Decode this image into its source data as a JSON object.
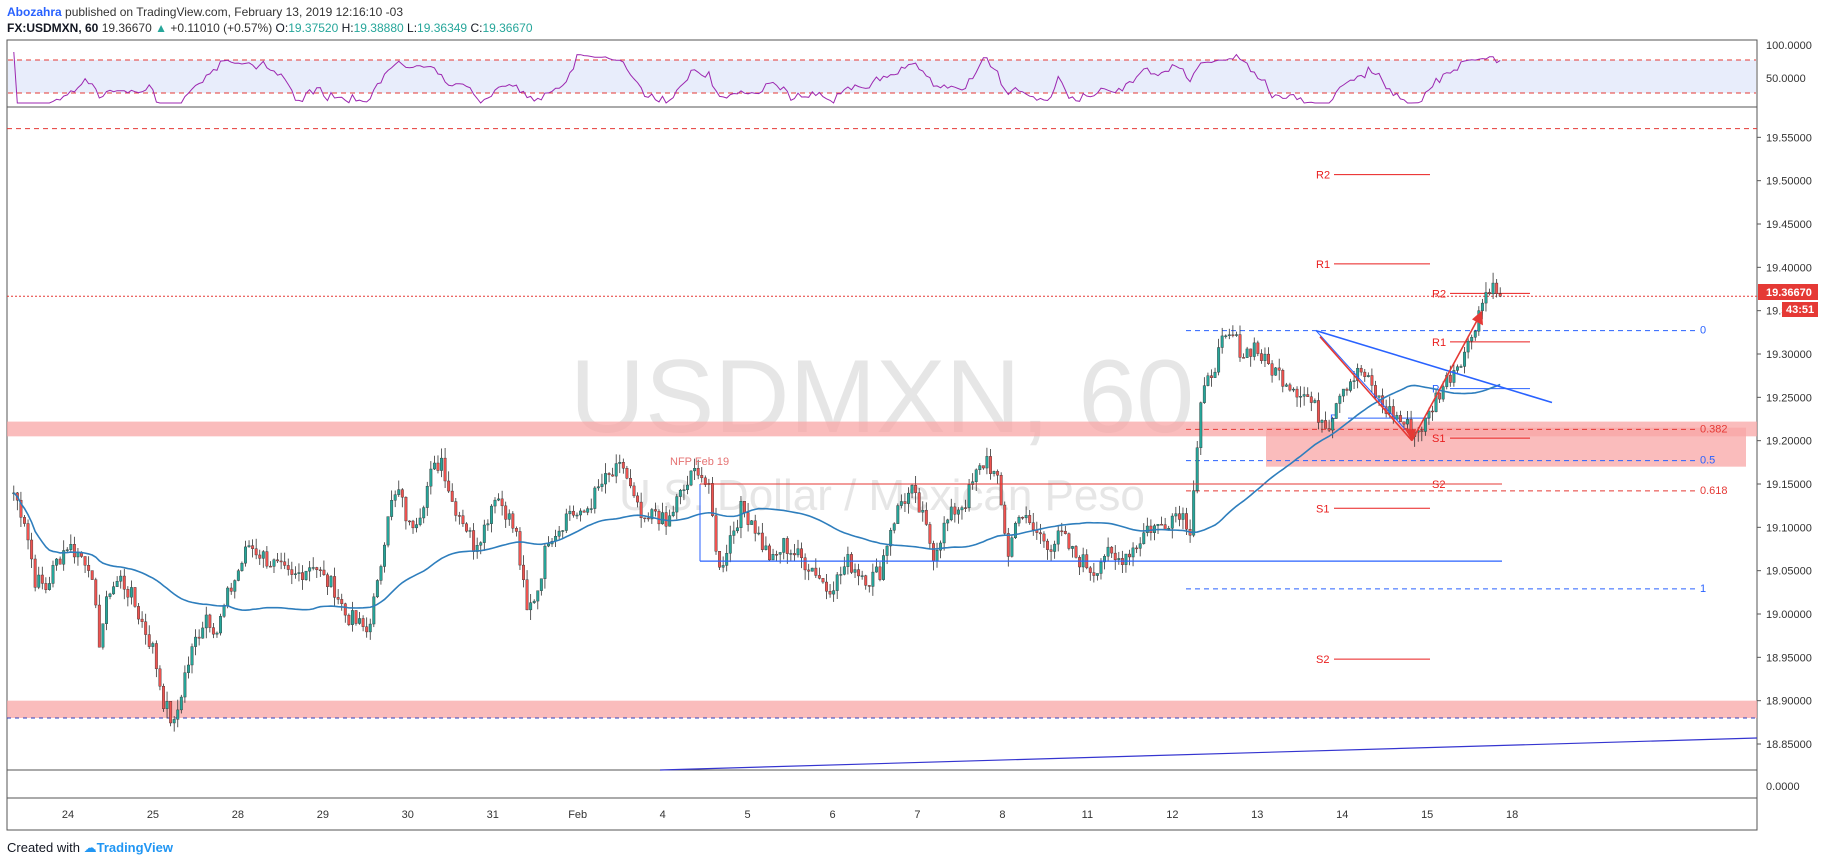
{
  "header": {
    "author": "Abozahra",
    "published": " published on TradingView.com, February 13, 2019 12:16:10 -03",
    "symbol": "FX:USDMXN, 60",
    "last": "19.36670",
    "arrow": "▲",
    "change": "+0.11010 (+0.57%)",
    "o_label": "O:",
    "o": "19.37520",
    "h_label": "H:",
    "h": "19.38880",
    "l_label": "L:",
    "l": "19.36349",
    "c_label": "C:",
    "c": "19.36670"
  },
  "watermark": {
    "symbol": "USDMXN, 60",
    "name": "U.S. Dollar / Mexican Peso"
  },
  "footer": {
    "created": "Created with",
    "brand": "TradingView"
  },
  "colors": {
    "up": "#26a69a",
    "down": "#ef5350",
    "ma": "#2e7ebd",
    "rsi": "#9c27b0",
    "fib": "#2962ff",
    "pivot": "#e91e1e",
    "zone": "#f8a5a5"
  },
  "rsi_panel": {
    "levels": [
      "100.0000",
      "50.0000"
    ]
  },
  "volume_panel": {
    "level": "0.0000"
  },
  "price_badge": {
    "price": "19.36670",
    "countdown": "43:51"
  },
  "annotations": {
    "nfp": "NFP Feb 19"
  },
  "chart_data": {
    "type": "candlestick",
    "title": "USDMXN, 60",
    "ylim": [
      18.82,
      19.585
    ],
    "price_ticks": [
      "19.55000",
      "19.50000",
      "19.45000",
      "19.40000",
      "19.35000",
      "19.30000",
      "19.25000",
      "19.20000",
      "19.15000",
      "19.10000",
      "19.05000",
      "19.00000",
      "18.95000",
      "18.90000",
      "18.85000"
    ],
    "price_tick_values": [
      19.55,
      19.5,
      19.45,
      19.4,
      19.35,
      19.3,
      19.25,
      19.2,
      19.15,
      19.1,
      19.05,
      19.0,
      18.95,
      18.9,
      18.85
    ],
    "x_ticks": [
      "24",
      "25",
      "28",
      "29",
      "30",
      "31",
      "Feb",
      "4",
      "5",
      "6",
      "7",
      "8",
      "11",
      "12",
      "13",
      "14",
      "15",
      "18"
    ],
    "last_price": 19.3667,
    "close_path": [
      19.14,
      19.11,
      19.04,
      19.03,
      19.06,
      19.08,
      19.07,
      19.06,
      18.97,
      19.03,
      19.04,
      19.02,
      18.99,
      18.96,
      18.9,
      18.87,
      18.93,
      18.97,
      19.0,
      18.98,
      19.02,
      19.05,
      19.08,
      19.07,
      19.06,
      19.05,
      19.04,
      19.05,
      19.06,
      19.04,
      19.03,
      19.0,
      18.99,
      18.98,
      19.03,
      19.12,
      19.14,
      19.1,
      19.12,
      19.16,
      19.18,
      19.13,
      19.11,
      19.08,
      19.1,
      19.14,
      19.12,
      19.09,
      19.0,
      19.03,
      19.09,
      19.1,
      19.12,
      19.11,
      19.13,
      19.15,
      19.16,
      19.17,
      19.13,
      19.1,
      19.12,
      19.1,
      19.13,
      19.15,
      19.17,
      19.14,
      19.05,
      19.09,
      19.12,
      19.11,
      19.08,
      19.06,
      19.08,
      19.07,
      19.06,
      19.05,
      19.03,
      19.04,
      19.06,
      19.05,
      19.04,
      19.05,
      19.1,
      19.13,
      19.14,
      19.11,
      19.07,
      19.1,
      19.12,
      19.13,
      19.16,
      19.18,
      19.15,
      19.07,
      19.12,
      19.1,
      19.09,
      19.08,
      19.09,
      19.07,
      19.06,
      19.05,
      19.07,
      19.06,
      19.07,
      19.08,
      19.1,
      19.1,
      19.11,
      19.12,
      19.1,
      19.24,
      19.28,
      19.31,
      19.32,
      19.3,
      19.31,
      19.29,
      19.28,
      19.27,
      19.26,
      19.25,
      19.23,
      19.22,
      19.26,
      19.27,
      19.28,
      19.26,
      19.24,
      19.23,
      19.22,
      19.21,
      19.22,
      19.25,
      19.27,
      19.29,
      19.31,
      19.35,
      19.38,
      19.3667
    ],
    "pivots": [
      {
        "label": "R2",
        "value": 19.507
      },
      {
        "label": "R1",
        "value": 19.404
      },
      {
        "label": "R2",
        "value": 19.37
      },
      {
        "label": "R1",
        "value": 19.314
      },
      {
        "label": "P",
        "value": 19.26
      },
      {
        "label": "P",
        "value": 19.226
      },
      {
        "label": "S1",
        "value": 19.203
      },
      {
        "label": "S2",
        "value": 19.15
      },
      {
        "label": "S1",
        "value": 19.122
      },
      {
        "label": "S2",
        "value": 18.948
      }
    ],
    "fibonacci": [
      {
        "label": "0",
        "value": 19.327
      },
      {
        "label": "0.382",
        "value": 19.213
      },
      {
        "label": "0.5",
        "value": 19.177
      },
      {
        "label": "0.618",
        "value": 19.142
      },
      {
        "label": "1",
        "value": 19.029
      }
    ],
    "resistance_lines": [
      19.56,
      18.88
    ],
    "zones": [
      [
        19.205,
        19.222
      ],
      [
        18.88,
        18.9
      ],
      [
        19.17,
        19.215
      ]
    ]
  }
}
